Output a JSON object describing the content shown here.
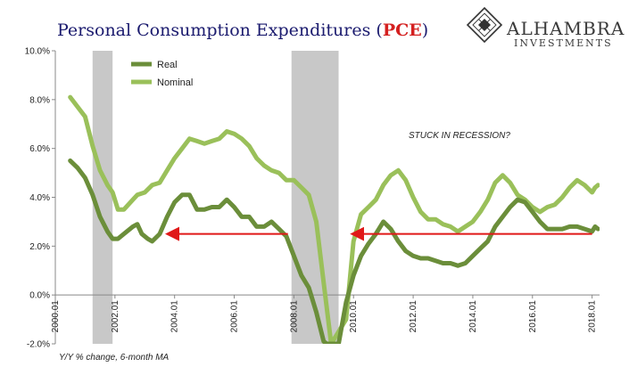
{
  "header": {
    "title_main": "Personal Consumption Expenditures (",
    "title_highlight": "PCE",
    "title_end": ")",
    "title_color": "#1a1a6e",
    "highlight_color": "#d42020"
  },
  "logo": {
    "name": "ALHAMBRA",
    "sub": "INVESTMENTS",
    "icon": "diamond-lattice-icon"
  },
  "footnote": "Y/Y % change, 6-month MA",
  "annotation": "STUCK IN RECESSION?",
  "chart_data": {
    "type": "line",
    "ylim": [
      -2.0,
      10.0
    ],
    "xlim": [
      2000.0,
      2018.25
    ],
    "grid": false,
    "legend_position": "top-left",
    "yticks": [
      -2,
      0,
      2,
      4,
      6,
      8,
      10
    ],
    "ytick_labels": [
      "-2.0%",
      "0.0%",
      "2.0%",
      "4.0%",
      "6.0%",
      "8.0%",
      "10.0%"
    ],
    "xtick_labels": [
      "2000.01",
      "2002.01",
      "2004.01",
      "2006.01",
      "2008.01",
      "2010.01",
      "2012.01",
      "2014.01",
      "2016.01",
      "2018.01"
    ],
    "xtick_values": [
      2000,
      2002,
      2004,
      2006,
      2008,
      2010,
      2012,
      2014,
      2016,
      2018
    ],
    "recessions": [
      [
        2001.25,
        2001.92
      ],
      [
        2007.92,
        2009.5
      ]
    ],
    "arrows": [
      {
        "from": [
          2007.8,
          2.5
        ],
        "to": [
          2003.8,
          2.5
        ]
      },
      {
        "from": [
          2018.0,
          2.5
        ],
        "to": [
          2010.0,
          2.5
        ]
      }
    ],
    "series": [
      {
        "name": "Real",
        "color": "#6b8e3a",
        "points": [
          [
            2000.5,
            5.5
          ],
          [
            2000.75,
            5.2
          ],
          [
            2001.0,
            4.8
          ],
          [
            2001.25,
            4.1
          ],
          [
            2001.5,
            3.2
          ],
          [
            2001.75,
            2.6
          ],
          [
            2001.92,
            2.3
          ],
          [
            2002.1,
            2.3
          ],
          [
            2002.3,
            2.5
          ],
          [
            2002.6,
            2.8
          ],
          [
            2002.75,
            2.9
          ],
          [
            2002.9,
            2.5
          ],
          [
            2003.1,
            2.3
          ],
          [
            2003.25,
            2.2
          ],
          [
            2003.5,
            2.5
          ],
          [
            2003.75,
            3.2
          ],
          [
            2004.0,
            3.8
          ],
          [
            2004.25,
            4.1
          ],
          [
            2004.5,
            4.1
          ],
          [
            2004.75,
            3.5
          ],
          [
            2005.0,
            3.5
          ],
          [
            2005.25,
            3.6
          ],
          [
            2005.5,
            3.6
          ],
          [
            2005.75,
            3.9
          ],
          [
            2006.0,
            3.6
          ],
          [
            2006.25,
            3.2
          ],
          [
            2006.5,
            3.2
          ],
          [
            2006.75,
            2.8
          ],
          [
            2007.0,
            2.8
          ],
          [
            2007.25,
            3.0
          ],
          [
            2007.5,
            2.7
          ],
          [
            2007.75,
            2.4
          ],
          [
            2008.0,
            1.6
          ],
          [
            2008.25,
            0.8
          ],
          [
            2008.5,
            0.3
          ],
          [
            2008.75,
            -0.7
          ],
          [
            2009.0,
            -1.9
          ],
          [
            2009.1,
            -2.0
          ],
          [
            2009.5,
            -2.0
          ],
          [
            2009.75,
            -0.3
          ],
          [
            2010.0,
            0.8
          ],
          [
            2010.25,
            1.6
          ],
          [
            2010.5,
            2.1
          ],
          [
            2010.75,
            2.5
          ],
          [
            2011.0,
            3.0
          ],
          [
            2011.25,
            2.7
          ],
          [
            2011.5,
            2.2
          ],
          [
            2011.75,
            1.8
          ],
          [
            2012.0,
            1.6
          ],
          [
            2012.25,
            1.5
          ],
          [
            2012.5,
            1.5
          ],
          [
            2012.75,
            1.4
          ],
          [
            2013.0,
            1.3
          ],
          [
            2013.25,
            1.3
          ],
          [
            2013.5,
            1.2
          ],
          [
            2013.75,
            1.3
          ],
          [
            2014.0,
            1.6
          ],
          [
            2014.25,
            1.9
          ],
          [
            2014.5,
            2.2
          ],
          [
            2014.75,
            2.8
          ],
          [
            2015.0,
            3.2
          ],
          [
            2015.25,
            3.6
          ],
          [
            2015.5,
            3.9
          ],
          [
            2015.75,
            3.8
          ],
          [
            2016.0,
            3.4
          ],
          [
            2016.25,
            3.0
          ],
          [
            2016.5,
            2.7
          ],
          [
            2016.75,
            2.7
          ],
          [
            2017.0,
            2.7
          ],
          [
            2017.25,
            2.8
          ],
          [
            2017.5,
            2.8
          ],
          [
            2017.75,
            2.7
          ],
          [
            2018.0,
            2.6
          ],
          [
            2018.1,
            2.8
          ],
          [
            2018.2,
            2.7
          ]
        ]
      },
      {
        "name": "Nominal",
        "color": "#9ac05a",
        "points": [
          [
            2000.5,
            8.1
          ],
          [
            2000.75,
            7.7
          ],
          [
            2001.0,
            7.3
          ],
          [
            2001.25,
            6.1
          ],
          [
            2001.5,
            5.1
          ],
          [
            2001.75,
            4.5
          ],
          [
            2001.92,
            4.2
          ],
          [
            2002.1,
            3.5
          ],
          [
            2002.3,
            3.5
          ],
          [
            2002.6,
            3.9
          ],
          [
            2002.75,
            4.1
          ],
          [
            2003.0,
            4.2
          ],
          [
            2003.25,
            4.5
          ],
          [
            2003.5,
            4.6
          ],
          [
            2003.75,
            5.1
          ],
          [
            2004.0,
            5.6
          ],
          [
            2004.25,
            6.0
          ],
          [
            2004.5,
            6.4
          ],
          [
            2004.75,
            6.3
          ],
          [
            2005.0,
            6.2
          ],
          [
            2005.25,
            6.3
          ],
          [
            2005.5,
            6.4
          ],
          [
            2005.75,
            6.7
          ],
          [
            2006.0,
            6.6
          ],
          [
            2006.25,
            6.4
          ],
          [
            2006.5,
            6.1
          ],
          [
            2006.75,
            5.6
          ],
          [
            2007.0,
            5.3
          ],
          [
            2007.25,
            5.1
          ],
          [
            2007.5,
            5.0
          ],
          [
            2007.75,
            4.7
          ],
          [
            2008.0,
            4.7
          ],
          [
            2008.25,
            4.4
          ],
          [
            2008.5,
            4.1
          ],
          [
            2008.75,
            3.0
          ],
          [
            2009.0,
            0.5
          ],
          [
            2009.25,
            -2.0
          ],
          [
            2009.75,
            -1.0
          ],
          [
            2010.0,
            2.2
          ],
          [
            2010.25,
            3.3
          ],
          [
            2010.5,
            3.6
          ],
          [
            2010.75,
            3.9
          ],
          [
            2011.0,
            4.5
          ],
          [
            2011.25,
            4.9
          ],
          [
            2011.5,
            5.1
          ],
          [
            2011.75,
            4.7
          ],
          [
            2012.0,
            4.0
          ],
          [
            2012.25,
            3.4
          ],
          [
            2012.5,
            3.1
          ],
          [
            2012.75,
            3.1
          ],
          [
            2013.0,
            2.9
          ],
          [
            2013.25,
            2.8
          ],
          [
            2013.5,
            2.6
          ],
          [
            2013.75,
            2.8
          ],
          [
            2014.0,
            3.0
          ],
          [
            2014.25,
            3.4
          ],
          [
            2014.5,
            3.9
          ],
          [
            2014.75,
            4.6
          ],
          [
            2015.0,
            4.9
          ],
          [
            2015.25,
            4.6
          ],
          [
            2015.5,
            4.1
          ],
          [
            2015.75,
            3.9
          ],
          [
            2016.0,
            3.6
          ],
          [
            2016.25,
            3.4
          ],
          [
            2016.5,
            3.6
          ],
          [
            2016.75,
            3.7
          ],
          [
            2017.0,
            4.0
          ],
          [
            2017.25,
            4.4
          ],
          [
            2017.5,
            4.7
          ],
          [
            2017.75,
            4.5
          ],
          [
            2018.0,
            4.2
          ],
          [
            2018.1,
            4.4
          ],
          [
            2018.2,
            4.5
          ]
        ]
      }
    ]
  }
}
